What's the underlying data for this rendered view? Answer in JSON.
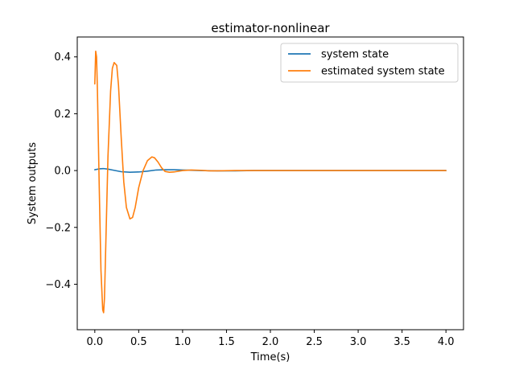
{
  "chart_data": {
    "type": "line",
    "title": "estimator-nonlinear",
    "xlabel": "Time(s)",
    "ylabel": "System outputs",
    "xlim": [
      -0.2,
      4.2
    ],
    "ylim": [
      -0.56,
      0.47
    ],
    "xticks": [
      0.0,
      0.5,
      1.0,
      1.5,
      2.0,
      2.5,
      3.0,
      3.5,
      4.0
    ],
    "xtick_labels": [
      "0.0",
      "0.5",
      "1.0",
      "1.5",
      "2.0",
      "2.5",
      "3.0",
      "3.5",
      "4.0"
    ],
    "yticks": [
      0.4,
      0.2,
      0.0,
      -0.2,
      -0.4
    ],
    "ytick_labels": [
      "0.4",
      "0.2",
      "0.0",
      "−0.2",
      "−0.4"
    ],
    "grid": false,
    "legend_position": "upper right",
    "series": [
      {
        "name": "system state",
        "color": "#1f77b4",
        "x": [
          0.0,
          0.05,
          0.1,
          0.15,
          0.2,
          0.3,
          0.4,
          0.5,
          0.6,
          0.7,
          0.8,
          0.9,
          1.0,
          1.2,
          1.4,
          1.6,
          1.8,
          2.0,
          2.5,
          3.0,
          3.5,
          4.0
        ],
        "y": [
          0.003,
          0.006,
          0.007,
          0.005,
          0.002,
          -0.004,
          -0.006,
          -0.005,
          -0.002,
          0.002,
          0.003,
          0.003,
          0.002,
          0.0,
          -0.001,
          -0.001,
          0.0,
          0.0,
          0.0,
          0.0,
          0.0,
          0.0
        ]
      },
      {
        "name": "estimated system state",
        "color": "#ff7f0e",
        "x": [
          0.0,
          0.01,
          0.02,
          0.03,
          0.05,
          0.07,
          0.09,
          0.1,
          0.11,
          0.13,
          0.15,
          0.18,
          0.2,
          0.22,
          0.25,
          0.27,
          0.3,
          0.33,
          0.36,
          0.4,
          0.43,
          0.46,
          0.5,
          0.55,
          0.6,
          0.65,
          0.68,
          0.72,
          0.76,
          0.8,
          0.85,
          0.9,
          1.0,
          1.1,
          1.2,
          1.3,
          1.4,
          1.6,
          1.8,
          2.0,
          2.5,
          3.0,
          3.5,
          4.0
        ],
        "y": [
          0.305,
          0.42,
          0.4,
          0.28,
          -0.05,
          -0.35,
          -0.49,
          -0.5,
          -0.45,
          -0.2,
          0.05,
          0.28,
          0.36,
          0.38,
          0.37,
          0.3,
          0.12,
          -0.04,
          -0.13,
          -0.17,
          -0.165,
          -0.13,
          -0.06,
          0.0,
          0.035,
          0.048,
          0.045,
          0.03,
          0.01,
          -0.003,
          -0.006,
          -0.005,
          0.0,
          0.002,
          0.001,
          -0.001,
          -0.001,
          0.0,
          0.0,
          0.0,
          0.0,
          0.0,
          0.0,
          0.0
        ]
      }
    ]
  }
}
